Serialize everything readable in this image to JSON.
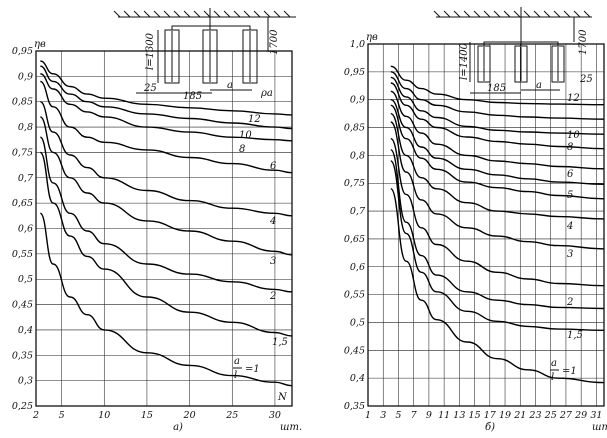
{
  "chart_data": [
    {
      "id": "a",
      "type": "line",
      "panel_label": "а)",
      "ylabel": "ηв",
      "xlabel": "N",
      "x_unit": "шт.",
      "xlim": [
        2,
        32
      ],
      "ylim": [
        0.25,
        0.95
      ],
      "xticks": [
        2,
        5,
        10,
        15,
        20,
        25,
        30
      ],
      "yticks": [
        0.25,
        0.3,
        0.35,
        0.4,
        0.45,
        0.5,
        0.55,
        0.6,
        0.65,
        0.7,
        0.75,
        0.8,
        0.85,
        0.9,
        0.95
      ],
      "ytick_labels": [
        "0,25",
        "0,3",
        "0,35",
        "0,4",
        "0,45",
        "0,5",
        "0,55",
        "0,6",
        "0,65",
        "0,7",
        "0,75",
        "0,8",
        "0,85",
        "0,9",
        "0,95"
      ],
      "xtick_labels": [
        "2",
        "5",
        "10",
        "15",
        "20",
        "25",
        "30"
      ],
      "grid": true,
      "series": [
        {
          "name": "12",
          "x": [
            2.5,
            4,
            6,
            8,
            10,
            15,
            20,
            25,
            30,
            32
          ],
          "y": [
            0.93,
            0.905,
            0.88,
            0.865,
            0.857,
            0.845,
            0.838,
            0.832,
            0.826,
            0.824
          ]
        },
        {
          "name": "10",
          "x": [
            2.5,
            4,
            6,
            8,
            10,
            15,
            20,
            25,
            30,
            32
          ],
          "y": [
            0.92,
            0.89,
            0.865,
            0.85,
            0.84,
            0.826,
            0.817,
            0.808,
            0.8,
            0.797
          ]
        },
        {
          "name": "8",
          "x": [
            2.5,
            4,
            6,
            8,
            10,
            15,
            20,
            25,
            30,
            32
          ],
          "y": [
            0.905,
            0.875,
            0.845,
            0.83,
            0.82,
            0.8,
            0.79,
            0.78,
            0.775,
            0.773
          ]
        },
        {
          "name": "6",
          "x": [
            2.5,
            4,
            6,
            8,
            10,
            15,
            20,
            25,
            30,
            32
          ],
          "y": [
            0.89,
            0.84,
            0.8,
            0.78,
            0.77,
            0.755,
            0.74,
            0.728,
            0.715,
            0.71
          ]
        },
        {
          "name": "4",
          "x": [
            2.5,
            4,
            6,
            8,
            10,
            15,
            20,
            25,
            30,
            32
          ],
          "y": [
            0.85,
            0.79,
            0.745,
            0.72,
            0.7,
            0.675,
            0.655,
            0.64,
            0.63,
            0.625
          ]
        },
        {
          "name": "3",
          "x": [
            2.5,
            4,
            6,
            8,
            10,
            15,
            20,
            25,
            30,
            32
          ],
          "y": [
            0.82,
            0.75,
            0.7,
            0.67,
            0.65,
            0.615,
            0.595,
            0.575,
            0.555,
            0.548
          ]
        },
        {
          "name": "2",
          "x": [
            2.5,
            4,
            6,
            8,
            10,
            15,
            20,
            25,
            30,
            32
          ],
          "y": [
            0.78,
            0.69,
            0.63,
            0.595,
            0.57,
            0.53,
            0.51,
            0.495,
            0.48,
            0.475
          ]
        },
        {
          "name": "1,5",
          "x": [
            2.5,
            4,
            6,
            8,
            10,
            15,
            20,
            25,
            30,
            32
          ],
          "y": [
            0.75,
            0.65,
            0.585,
            0.545,
            0.52,
            0.465,
            0.435,
            0.415,
            0.395,
            0.388
          ]
        },
        {
          "name": "a/l = 1",
          "x": [
            2.5,
            4,
            6,
            8,
            10,
            15,
            20,
            25,
            30,
            32
          ],
          "y": [
            0.63,
            0.53,
            0.465,
            0.43,
            0.4,
            0.355,
            0.33,
            0.31,
            0.297,
            0.29
          ]
        }
      ]
    },
    {
      "id": "b",
      "type": "line",
      "panel_label": "б)",
      "ylabel": "ηв",
      "xlabel": "",
      "x_unit": "шт.",
      "xlim": [
        1,
        32
      ],
      "ylim": [
        0.35,
        1.0
      ],
      "xticks": [
        1,
        3,
        5,
        7,
        9,
        11,
        13,
        15,
        17,
        19,
        21,
        23,
        25,
        27,
        29,
        31
      ],
      "yticks": [
        0.35,
        0.4,
        0.45,
        0.5,
        0.55,
        0.6,
        0.65,
        0.7,
        0.75,
        0.8,
        0.85,
        0.9,
        0.95,
        1.0
      ],
      "ytick_labels": [
        "0,35",
        "0,4",
        "0,45",
        "0,5",
        "0,55",
        "0,6",
        "0,65",
        "0,7",
        "0,75",
        "0,8",
        "0,85",
        "0,9",
        "0,95",
        "1,0"
      ],
      "xtick_labels": [
        "1",
        "3",
        "5",
        "7",
        "9",
        "11",
        "13",
        "15",
        "17",
        "19",
        "21",
        "23",
        "25",
        "27",
        "29",
        "31"
      ],
      "grid": true,
      "series": [
        {
          "name": "12",
          "x": [
            4,
            6,
            8,
            10,
            14,
            18,
            22,
            26,
            32
          ],
          "y": [
            0.96,
            0.935,
            0.92,
            0.91,
            0.9,
            0.895,
            0.893,
            0.892,
            0.891
          ]
        },
        {
          "name": "",
          "x": [
            4,
            6,
            8,
            10,
            14,
            18,
            22,
            26,
            32
          ],
          "y": [
            0.95,
            0.92,
            0.9,
            0.89,
            0.878,
            0.872,
            0.869,
            0.867,
            0.865
          ]
        },
        {
          "name": "",
          "x": [
            4,
            6,
            8,
            10,
            14,
            18,
            22,
            26,
            32
          ],
          "y": [
            0.94,
            0.905,
            0.88,
            0.868,
            0.852,
            0.845,
            0.842,
            0.84,
            0.838
          ]
        },
        {
          "name": "10",
          "x": [
            4,
            6,
            8,
            10,
            14,
            18,
            22,
            26,
            32
          ],
          "y": [
            0.93,
            0.89,
            0.865,
            0.85,
            0.833,
            0.825,
            0.82,
            0.816,
            0.812
          ]
        },
        {
          "name": "8",
          "x": [
            4,
            6,
            8,
            10,
            14,
            18,
            22,
            26,
            32
          ],
          "y": [
            0.915,
            0.87,
            0.84,
            0.82,
            0.8,
            0.79,
            0.785,
            0.78,
            0.776
          ]
        },
        {
          "name": "",
          "x": [
            4,
            6,
            8,
            10,
            14,
            18,
            22,
            26,
            32
          ],
          "y": [
            0.9,
            0.85,
            0.815,
            0.795,
            0.775,
            0.765,
            0.758,
            0.752,
            0.748
          ]
        },
        {
          "name": "6",
          "x": [
            4,
            6,
            8,
            10,
            14,
            18,
            22,
            26,
            32
          ],
          "y": [
            0.89,
            0.83,
            0.795,
            0.775,
            0.752,
            0.742,
            0.735,
            0.728,
            0.722
          ]
        },
        {
          "name": "5",
          "x": [
            4,
            6,
            8,
            10,
            14,
            18,
            22,
            26,
            32
          ],
          "y": [
            0.875,
            0.8,
            0.76,
            0.74,
            0.715,
            0.7,
            0.695,
            0.69,
            0.686
          ]
        },
        {
          "name": "4",
          "x": [
            4,
            6,
            8,
            10,
            14,
            18,
            22,
            26,
            32
          ],
          "y": [
            0.86,
            0.77,
            0.72,
            0.695,
            0.67,
            0.655,
            0.645,
            0.638,
            0.632
          ]
        },
        {
          "name": "3",
          "x": [
            4,
            6,
            8,
            10,
            14,
            18,
            22,
            26,
            32
          ],
          "y": [
            0.83,
            0.73,
            0.67,
            0.64,
            0.61,
            0.59,
            0.578,
            0.57,
            0.566
          ]
        },
        {
          "name": "2",
          "x": [
            4,
            6,
            8,
            10,
            14,
            18,
            22,
            26,
            32
          ],
          "y": [
            0.81,
            0.68,
            0.62,
            0.585,
            0.555,
            0.54,
            0.532,
            0.527,
            0.525
          ]
        },
        {
          "name": "1,5",
          "x": [
            4,
            6,
            8,
            10,
            14,
            18,
            22,
            26,
            32
          ],
          "y": [
            0.79,
            0.66,
            0.59,
            0.555,
            0.52,
            0.502,
            0.493,
            0.488,
            0.486
          ]
        },
        {
          "name": "a/l = 1",
          "x": [
            4,
            6,
            8,
            10,
            14,
            18,
            22,
            26,
            32
          ],
          "y": [
            0.74,
            0.61,
            0.54,
            0.505,
            0.465,
            0.435,
            0.415,
            0.4,
            0.392
          ]
        }
      ]
    }
  ],
  "schematic_a": {
    "l_label": "l=1300",
    "depth_label": "1700",
    "a_label": "a",
    "dim1": "25",
    "dim2": "185",
    "rho_label": "ρа"
  },
  "schematic_b": {
    "l_label": "l=1400",
    "depth_label": "1700",
    "a_label": "a",
    "dim1": "185",
    "dim2": "25"
  }
}
